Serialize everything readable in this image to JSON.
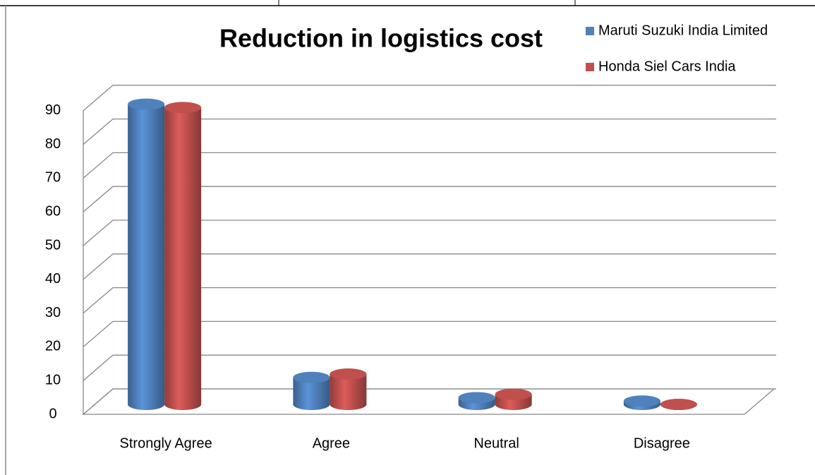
{
  "chart_data": {
    "type": "bar3d",
    "title": "Reduction in logistics cost",
    "categories": [
      "Strongly Agree",
      "Agree",
      "Neutral",
      "Disagree"
    ],
    "series": [
      {
        "name": "Maruti Suzuki India Limited",
        "color": "#4f81bd",
        "values": [
          89,
          8,
          2,
          1
        ]
      },
      {
        "name": "Honda Siel Cars India",
        "color": "#c0504d",
        "values": [
          88,
          9,
          3,
          0
        ]
      }
    ],
    "ylim": [
      0,
      90
    ],
    "yticks": [
      0,
      10,
      20,
      30,
      40,
      50,
      60,
      70,
      80,
      90
    ],
    "grid": true,
    "legend": "top-right"
  }
}
